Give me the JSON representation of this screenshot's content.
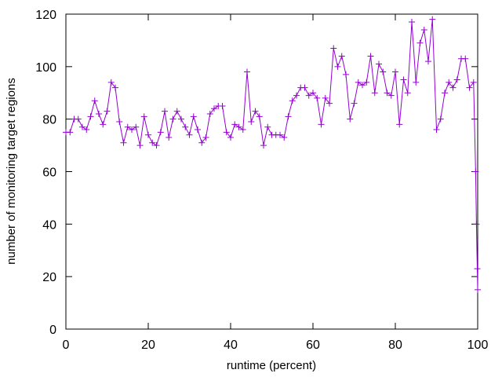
{
  "chart_data": {
    "type": "line",
    "title": "",
    "xlabel": "runtime (percent)",
    "ylabel": "number of monitoring target regions",
    "xlim": [
      0,
      100
    ],
    "ylim": [
      0,
      120
    ],
    "xticks": [
      0,
      20,
      40,
      60,
      80,
      100
    ],
    "yticks": [
      0,
      20,
      40,
      60,
      80,
      100,
      120
    ],
    "grid": false,
    "legend": "none",
    "marker": "plus",
    "colors": {
      "series": "#9400d3",
      "axis": "#000000"
    },
    "series": [
      {
        "x": [
          0,
          1,
          2,
          3,
          4,
          5,
          6,
          7,
          8,
          9,
          10,
          11,
          12,
          13,
          14,
          15,
          16,
          17,
          18,
          19,
          20,
          21,
          22,
          23,
          24,
          25,
          26,
          27,
          28,
          29,
          30,
          31,
          32,
          33,
          34,
          35,
          36,
          37,
          38,
          39,
          40,
          41,
          42,
          43,
          44,
          45,
          46,
          47,
          48,
          49,
          50,
          51,
          52,
          53,
          54,
          55,
          56,
          57,
          58,
          59,
          60,
          61,
          62,
          63,
          64,
          65,
          66,
          67,
          68,
          69,
          70,
          71,
          72,
          73,
          74,
          75,
          76,
          77,
          78,
          79,
          80,
          81,
          82,
          83,
          84,
          85,
          86,
          87,
          88,
          89,
          90,
          91,
          92,
          93,
          94,
          95,
          96,
          97,
          98,
          99,
          99.5,
          99.7,
          99.9,
          100
        ],
        "values": [
          75,
          75,
          80,
          80,
          77,
          76,
          81,
          87,
          82,
          78,
          83,
          94,
          92,
          79,
          71,
          77,
          76,
          77,
          70,
          81,
          74,
          71,
          70,
          75,
          83,
          73,
          80,
          83,
          80,
          77,
          74,
          81,
          76,
          71,
          73,
          82,
          84,
          85,
          85,
          75,
          73,
          78,
          77,
          76,
          98,
          79,
          83,
          81,
          70,
          77,
          74,
          74,
          74,
          73,
          81,
          87,
          89,
          92,
          92,
          89,
          90,
          88,
          78,
          88,
          86,
          107,
          100,
          104,
          97,
          80,
          86,
          94,
          93,
          94,
          104,
          90,
          101,
          98,
          90,
          89,
          98,
          78,
          95,
          90,
          117,
          94,
          109,
          114,
          102,
          118,
          76,
          80,
          90,
          94,
          92,
          95,
          103,
          103,
          92,
          94,
          60,
          40,
          23,
          15
        ]
      }
    ]
  }
}
